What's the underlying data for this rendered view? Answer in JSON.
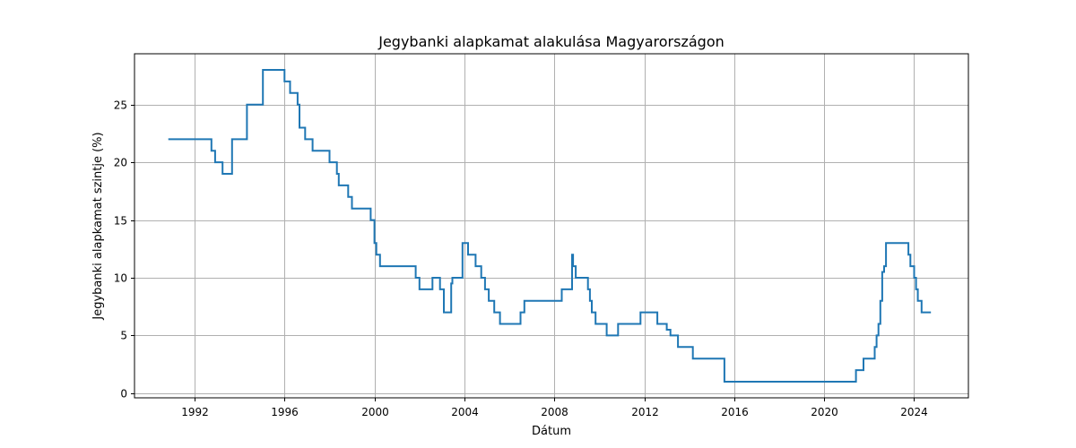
{
  "chart_data": {
    "type": "line",
    "step": true,
    "title": "Jegybanki alapkamat alakulása Magyarországon",
    "xlabel": "Dátum",
    "ylabel": "Jegybanki alapkamat szintje (%)",
    "xlim": [
      "1989-05-01",
      "2026-06-01"
    ],
    "ylim": [
      -0.4,
      29.4
    ],
    "xticks": [
      "1992-01-01",
      "1996-01-01",
      "2000-01-01",
      "2004-01-01",
      "2008-01-01",
      "2012-01-01",
      "2016-01-01",
      "2020-01-01",
      "2024-01-01"
    ],
    "xtick_labels": [
      "1992",
      "1996",
      "2000",
      "2004",
      "2008",
      "2012",
      "2016",
      "2020",
      "2024"
    ],
    "yticks": [
      0,
      5,
      10,
      15,
      20,
      25
    ],
    "grid": true,
    "legend": "none",
    "series_color": "#1f77b4",
    "series": [
      {
        "x": [
          "1990-11-01",
          "1992-10-01",
          "1992-12-01",
          "1993-04-01",
          "1993-09-01",
          "1994-05-01",
          "1995-01-15",
          "1996-01-01",
          "1996-04-01",
          "1996-08-01",
          "1996-09-01",
          "1996-12-01",
          "1997-04-01",
          "1997-07-01",
          "1998-01-01",
          "1998-05-01",
          "1998-06-01",
          "1998-11-01",
          "1999-01-01",
          "1999-11-01",
          "2000-01-01",
          "2000-02-01",
          "2000-04-01",
          "2001-11-01",
          "2002-01-01",
          "2002-08-01",
          "2002-12-01",
          "2003-02-01",
          "2003-06-01",
          "2003-06-20",
          "2003-12-01",
          "2004-03-01",
          "2004-07-01",
          "2004-10-01",
          "2004-12-01",
          "2005-02-01",
          "2005-05-01",
          "2005-08-01",
          "2006-07-01",
          "2006-09-01",
          "2008-05-01",
          "2008-10-15",
          "2008-11-01",
          "2008-11-15",
          "2008-12-15",
          "2009-07-01",
          "2009-08-01",
          "2009-09-01",
          "2009-11-01",
          "2010-01-01",
          "2010-05-01",
          "2010-11-01",
          "2011-11-01",
          "2012-08-01",
          "2013-01-01",
          "2013-03-01",
          "2013-07-01",
          "2014-03-01",
          "2014-05-01",
          "2015-07-25",
          "2021-06-01",
          "2021-10-01",
          "2022-04-01",
          "2022-05-01",
          "2022-06-01",
          "2022-07-01",
          "2022-08-01",
          "2022-09-01",
          "2022-10-01",
          "2023-09-01",
          "2023-10-01",
          "2023-11-01",
          "2024-01-01",
          "2024-02-01",
          "2024-03-01",
          "2024-05-01",
          "2024-07-01",
          "2024-10-01"
        ],
        "y": [
          22,
          21,
          20,
          19,
          22,
          25,
          28,
          27,
          26,
          25,
          23,
          22,
          21,
          21,
          20,
          19,
          18,
          17,
          16,
          15,
          13,
          12,
          11,
          10,
          9,
          10,
          9,
          7,
          9.5,
          10,
          13,
          12,
          11,
          10,
          9,
          8,
          7,
          6,
          7,
          8,
          9,
          12,
          11,
          11,
          10,
          9,
          8,
          7,
          6,
          6,
          5,
          6,
          7,
          6,
          5.5,
          5,
          4,
          3,
          3,
          1,
          2,
          3,
          4,
          5,
          6,
          8,
          10.5,
          11,
          13,
          13,
          12,
          11,
          10,
          9,
          8,
          7,
          7,
          7
        ]
      }
    ]
  }
}
